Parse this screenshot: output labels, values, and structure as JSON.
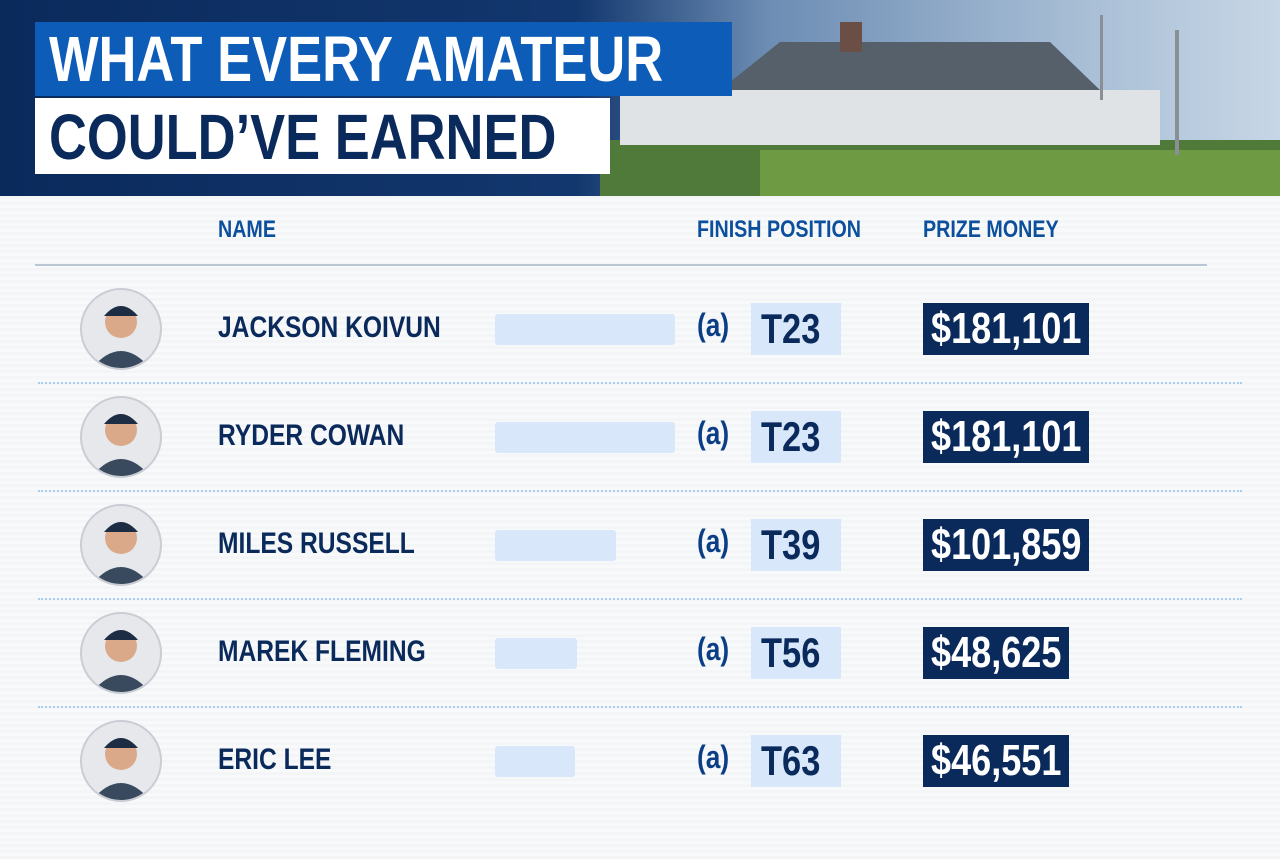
{
  "header": {
    "title_line1": "WHAT EVERY AMATEUR",
    "title_line2": "COULD’VE EARNED"
  },
  "table": {
    "columns": [
      "NAME",
      "FINISH POSITION",
      "PRIZE MONEY"
    ],
    "rows": [
      {
        "name": "JACKSON KOIVUN",
        "status": "(a)",
        "position": "T23",
        "prize": {
          "value": 181101,
          "label": "$181,101"
        }
      },
      {
        "name": "RYDER COWAN",
        "status": "(a)",
        "position": "T23",
        "prize": {
          "value": 181101,
          "label": "$181,101"
        }
      },
      {
        "name": "MILES RUSSELL",
        "status": "(a)",
        "position": "T39",
        "prize": {
          "value": 101859,
          "label": "$101,859"
        }
      },
      {
        "name": "MAREK FLEMING",
        "status": "(a)",
        "position": "T56",
        "prize": {
          "value": 48625,
          "label": "$48,625"
        }
      },
      {
        "name": "ERIC LEE",
        "status": "(a)",
        "position": "T63",
        "prize": {
          "value": 46551,
          "label": "$46,551"
        }
      }
    ]
  }
}
